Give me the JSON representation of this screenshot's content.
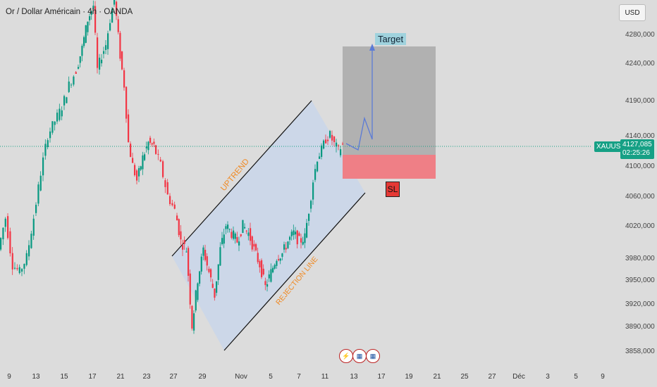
{
  "header": {
    "title": "Or / Dollar Américain · 4h · OANDA",
    "currency": "USD"
  },
  "price_tag": {
    "symbol": "XAUUSD",
    "price": "4127,085",
    "countdown": "02:25:26"
  },
  "annotations": {
    "uptrend": "UPTREND",
    "rejection": "REJECTION LINE",
    "target": "Target",
    "sl": "SL"
  },
  "events": [
    "lightning-icon",
    "us-flag-icon",
    "us-flag-icon"
  ],
  "colors": {
    "bull": "#089981",
    "bear": "#f23645",
    "channel": "#c9d6ea",
    "target_box": "#a9a9a9",
    "stop_box": "#ef7f86",
    "arrow": "#5b7bd6"
  },
  "chart_data": {
    "type": "candlestick",
    "y_ticks": [
      "4280,000",
      "4240,000",
      "4190,000",
      "4140,000",
      "4100,000",
      "4060,000",
      "4020,000",
      "3980,000",
      "3950,000",
      "3920,000",
      "3890,000",
      "3858,000"
    ],
    "x_ticks": [
      "9",
      "13",
      "15",
      "17",
      "21",
      "23",
      "27",
      "29",
      "Nov",
      "5",
      "7",
      "11",
      "13",
      "17",
      "19",
      "21",
      "25",
      "27",
      "Déc",
      "3",
      "5",
      "9"
    ],
    "ylim": [
      3858,
      4300
    ],
    "current_price": 4127.085,
    "grid": false
  }
}
